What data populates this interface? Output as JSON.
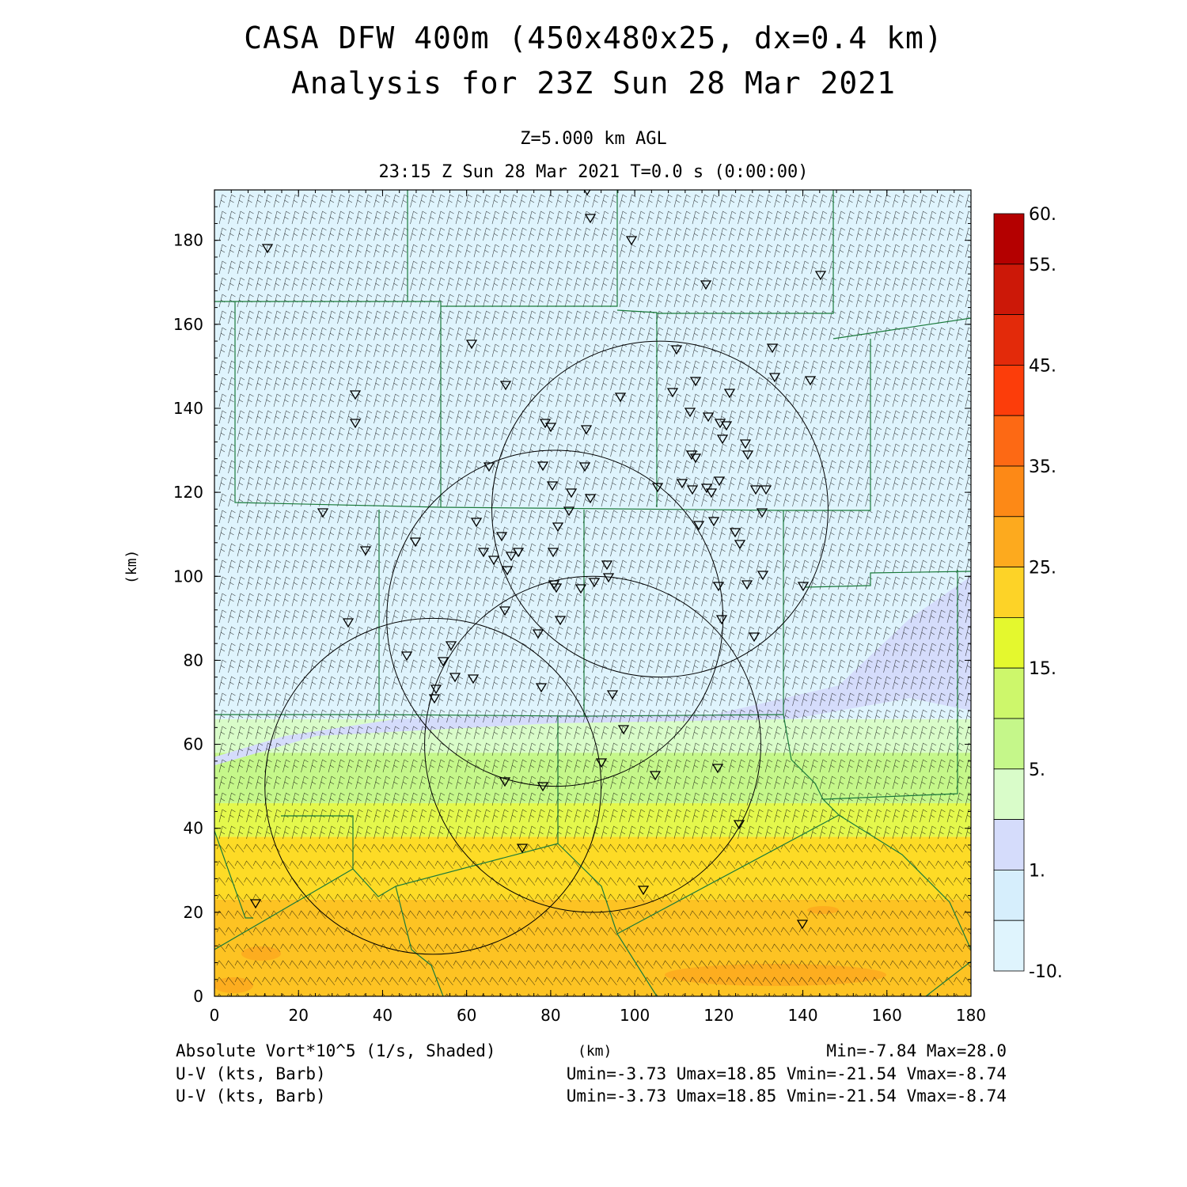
{
  "header": {
    "title_line1": "CASA DFW 400m (450x480x25, dx=0.4 km)",
    "title_line2": "Analysis for 23Z Sun 28 Mar 2021",
    "level": "Z=5.000 km AGL",
    "time": "23:15 Z Sun 28 Mar 2021    T=0.0 s (0:00:00)"
  },
  "map": {
    "x_axis_label": "(km)",
    "y_axis_label": "(km)",
    "x_range": [
      0,
      180
    ],
    "y_range": [
      0,
      192
    ],
    "x_ticks": [
      "0",
      "20",
      "40",
      "60",
      "80",
      "100",
      "120",
      "140",
      "160",
      "180"
    ],
    "y_ticks": [
      "0",
      "20",
      "40",
      "60",
      "80",
      "100",
      "120",
      "140",
      "160",
      "180"
    ],
    "radar_rings_center_km": [
      [
        52,
        50
      ],
      [
        81,
        90
      ],
      [
        90,
        60
      ],
      [
        106,
        116
      ]
    ],
    "radar_ring_radius_km": 40,
    "vorticity_bands": [
      {
        "y_from": 0,
        "y_to": 23,
        "color": "#fdc323"
      },
      {
        "y_from": 23,
        "y_to": 38,
        "color": "#fddb26"
      },
      {
        "y_from": 38,
        "y_to": 46,
        "color": "#e4f84c"
      },
      {
        "y_from": 46,
        "y_to": 58,
        "color": "#c5f78a"
      },
      {
        "y_from": 58,
        "y_to": 66,
        "color": "#d9fcc9"
      },
      {
        "y_from": 66,
        "y_to": 192,
        "color": "#dff4fd"
      }
    ],
    "wind_barb_color": "#000000",
    "county_line_color": "#1a7a3a"
  },
  "colorbar": {
    "labels": [
      "60.",
      "55.",
      "45.",
      "35.",
      "25.",
      "15.",
      "5.",
      "1.",
      "-10."
    ],
    "colors": [
      "#b40000",
      "#cc1808",
      "#e32a0a",
      "#fc3d0a",
      "#fd6914",
      "#fd8916",
      "#fdaa1e",
      "#fdd327",
      "#e4f82e",
      "#cdf76b",
      "#c5f78a",
      "#d9fcc9",
      "#d5dcfb",
      "#d6eefc",
      "#dff4fd"
    ]
  },
  "footer": {
    "field": "Absolute Vort*10^5 (1/s, Shaded)",
    "x_unit": "(km)",
    "minmax": "Min=-7.84 Max=28.0",
    "barb1": "U-V (kts, Barb)",
    "barb1_stats": "Umin=-3.73 Umax=18.85 Vmin=-21.54 Vmax=-8.74",
    "barb2": "U-V (kts, Barb)",
    "barb2_stats": "Umin=-3.73 Umax=18.85 Vmin=-21.54 Vmax=-8.74"
  }
}
